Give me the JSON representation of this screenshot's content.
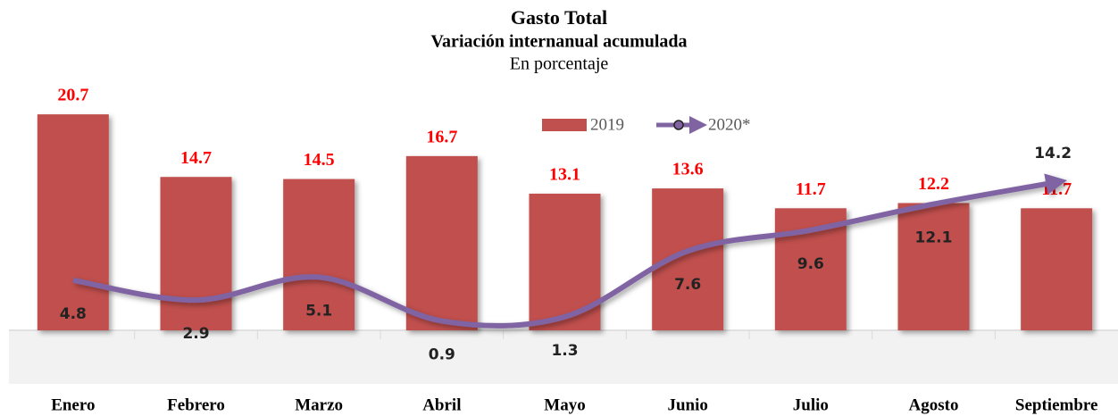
{
  "chart_data": {
    "type": "bar",
    "title": "Gasto Total",
    "subtitle": "Variación internanual acumulada",
    "unit_note": "En porcentaje",
    "categories": [
      "Enero",
      "Febrero",
      "Marzo",
      "Abril",
      "Mayo",
      "Junio",
      "Julio",
      "Agosto",
      "Septiembre"
    ],
    "series": [
      {
        "name": "2019",
        "type": "bar",
        "color": "#c0504d",
        "values": [
          20.7,
          14.7,
          14.5,
          16.7,
          13.1,
          13.6,
          11.7,
          12.2,
          11.7
        ]
      },
      {
        "name": "2020*",
        "type": "line",
        "color": "#8064a2",
        "values": [
          4.8,
          2.9,
          5.1,
          0.9,
          1.3,
          7.6,
          9.6,
          12.1,
          14.2
        ]
      }
    ],
    "ylim": [
      -5,
      22
    ]
  }
}
